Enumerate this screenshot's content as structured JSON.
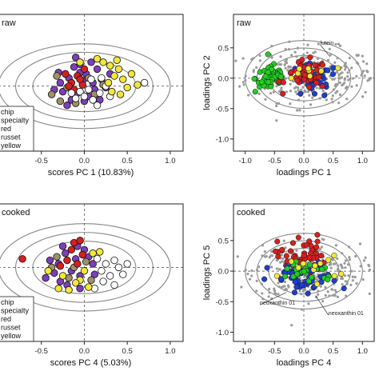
{
  "figure": {
    "colors": {
      "chip": "#7c3fb8",
      "specialty": "#a09068",
      "red": "#d62020",
      "russet": "#ffffff",
      "yellow": "#f2e63a",
      "green": "#22cc22",
      "blue": "#1f3fd0",
      "gray": "#9a9a9a",
      "ellipse": "#888888"
    }
  },
  "chart_data": [
    {
      "type": "scatter",
      "panel": "scores-raw",
      "title": "",
      "xlabel": "scores PC 1 (10.83%)",
      "ylabel": "",
      "xlim": [
        -1.0,
        1.15
      ],
      "ylim": [
        -0.95,
        1.05
      ],
      "xticks": [
        "-0.5",
        "0.0",
        "0.5",
        "1.0"
      ],
      "ellipse_radii": [
        0.6,
        0.8,
        1.0
      ],
      "legend": [
        "chip",
        "specialty",
        "red",
        "russet",
        "yellow"
      ],
      "legend_position": "bottom-left",
      "series": [
        {
          "name": "chip",
          "color_key": "chip",
          "points": [
            [
              -0.28,
              0.05
            ],
            [
              -0.12,
              0.28
            ],
            [
              -0.05,
              0.32
            ],
            [
              0.02,
              0.18
            ],
            [
              -0.18,
              0.12
            ],
            [
              0.1,
              0.05
            ],
            [
              0.15,
              0.25
            ],
            [
              -0.25,
              -0.08
            ],
            [
              -0.08,
              -0.1
            ],
            [
              0.05,
              -0.15
            ],
            [
              -0.15,
              -0.2
            ],
            [
              0.2,
              0.1
            ],
            [
              -0.02,
              0.08
            ],
            [
              0.12,
              -0.05
            ],
            [
              -0.3,
              0.2
            ],
            [
              0.25,
              -0.02
            ],
            [
              -0.1,
              0.42
            ],
            [
              0.08,
              0.35
            ],
            [
              -0.2,
              -0.28
            ],
            [
              0.18,
              -0.2
            ],
            [
              -0.35,
              -0.05
            ],
            [
              0.0,
              -0.22
            ],
            [
              0.3,
              0.18
            ],
            [
              -0.05,
              0.2
            ]
          ]
        },
        {
          "name": "specialty",
          "color_key": "specialty",
          "points": [
            [
              -0.32,
              0.15
            ],
            [
              -0.2,
              -0.02
            ],
            [
              0.05,
              0.12
            ],
            [
              -0.38,
              -0.12
            ],
            [
              0.12,
              -0.12
            ],
            [
              -0.1,
              -0.25
            ],
            [
              0.22,
              0.02
            ],
            [
              -0.28,
              -0.22
            ]
          ]
        },
        {
          "name": "red",
          "color_key": "red",
          "points": [
            [
              -0.15,
              0.05
            ],
            [
              -0.08,
              0.15
            ],
            [
              -0.02,
              0.02
            ],
            [
              -0.22,
              0.18
            ],
            [
              0.0,
              0.25
            ],
            [
              -0.12,
              -0.05
            ],
            [
              -0.05,
              0.1
            ],
            [
              -0.18,
              0.0
            ]
          ]
        },
        {
          "name": "russet",
          "color_key": "russet",
          "points": [
            [
              0.05,
              -0.05
            ],
            [
              -0.05,
              -0.08
            ],
            [
              0.1,
              -0.2
            ],
            [
              0.18,
              -0.1
            ],
            [
              0.0,
              -0.15
            ],
            [
              -0.1,
              -0.18
            ],
            [
              0.25,
              0.0
            ],
            [
              0.15,
              -0.28
            ],
            [
              0.2,
              0.12
            ],
            [
              -0.15,
              -0.1
            ],
            [
              0.08,
              0.1
            ],
            [
              0.3,
              -0.15
            ],
            [
              0.7,
              0.05
            ]
          ]
        },
        {
          "name": "yellow",
          "color_key": "yellow",
          "points": [
            [
              0.3,
              0.3
            ],
            [
              0.35,
              0.15
            ],
            [
              0.4,
              0.25
            ],
            [
              0.28,
              0.05
            ],
            [
              0.45,
              0.1
            ],
            [
              0.5,
              -0.02
            ],
            [
              0.32,
              -0.08
            ],
            [
              0.22,
              0.35
            ],
            [
              0.42,
              -0.12
            ],
            [
              0.55,
              0.18
            ],
            [
              0.38,
              0.38
            ],
            [
              0.62,
              0.02
            ],
            [
              -0.05,
              0.35
            ],
            [
              0.15,
              0.4
            ]
          ]
        }
      ]
    },
    {
      "type": "scatter",
      "panel": "loadings-raw",
      "title": "raw",
      "xlabel": "loadings PC 1",
      "ylabel": "loadings PC 2",
      "xlim": [
        -1.2,
        1.2
      ],
      "ylim": [
        -1.2,
        1.05
      ],
      "xticks": [
        "-1.0",
        "-0.5",
        "0.0",
        "0.5",
        "1.0"
      ],
      "yticks": [
        "-1.0",
        "-0.5",
        "0.0",
        "0.5"
      ],
      "ellipse_radii": [
        0.6,
        0.8,
        1.0
      ],
      "annotations": [
        "lutein"
      ]
    },
    {
      "type": "scatter",
      "panel": "scores-cooked",
      "title": "",
      "xlabel": "scores PC 4 (5.03%)",
      "ylabel": "",
      "xlim": [
        -1.0,
        1.15
      ],
      "ylim": [
        -1.05,
        0.9
      ],
      "xticks": [
        "-0.5",
        "0.0",
        "0.5",
        "1.0"
      ],
      "ellipse_radii": [
        0.6,
        0.8,
        1.0
      ],
      "legend": [
        "chip",
        "specialty",
        "red",
        "russet",
        "yellow"
      ],
      "legend_position": "bottom-left",
      "series": [
        {
          "name": "chip",
          "color_key": "chip",
          "points": [
            [
              -0.3,
              0.05
            ],
            [
              -0.22,
              0.2
            ],
            [
              -0.1,
              0.12
            ],
            [
              0.05,
              0.15
            ],
            [
              -0.35,
              -0.08
            ],
            [
              -0.15,
              -0.05
            ],
            [
              -0.05,
              -0.12
            ],
            [
              0.1,
              0.05
            ],
            [
              -0.28,
              -0.2
            ],
            [
              0.0,
              0.25
            ],
            [
              -0.4,
              0.1
            ],
            [
              -0.2,
              -0.25
            ],
            [
              0.12,
              -0.1
            ],
            [
              -0.08,
              0.3
            ],
            [
              -0.45,
              -0.15
            ],
            [
              -0.25,
              0.3
            ],
            [
              -0.05,
              -0.3
            ]
          ]
        },
        {
          "name": "specialty",
          "color_key": "specialty",
          "points": [
            [
              -0.12,
              0.0
            ],
            [
              -0.32,
              0.15
            ],
            [
              -0.18,
              -0.15
            ],
            [
              0.02,
              0.08
            ],
            [
              -0.38,
              0.0
            ],
            [
              0.08,
              -0.18
            ]
          ]
        },
        {
          "name": "red",
          "color_key": "red",
          "points": [
            [
              -0.72,
              0.12
            ],
            [
              -0.12,
              0.35
            ],
            [
              -0.2,
              0.1
            ],
            [
              -0.02,
              0.18
            ],
            [
              -0.28,
              0.02
            ],
            [
              -0.08,
              0.05
            ],
            [
              -0.15,
              0.25
            ],
            [
              -0.05,
              0.38
            ]
          ]
        },
        {
          "name": "russet",
          "color_key": "russet",
          "points": [
            [
              0.15,
              0.12
            ],
            [
              0.25,
              0.05
            ],
            [
              0.2,
              -0.05
            ],
            [
              0.35,
              0.1
            ],
            [
              0.3,
              -0.12
            ],
            [
              0.4,
              0.0
            ],
            [
              0.45,
              -0.1
            ],
            [
              0.22,
              -0.2
            ],
            [
              0.5,
              0.05
            ],
            [
              0.35,
              -0.25
            ],
            [
              0.12,
              -0.3
            ]
          ]
        },
        {
          "name": "yellow",
          "color_key": "yellow",
          "points": [
            [
              -0.18,
              -0.32
            ],
            [
              -0.05,
              -0.18
            ],
            [
              0.05,
              -0.28
            ],
            [
              -0.3,
              -0.3
            ],
            [
              -0.1,
              -0.22
            ],
            [
              0.1,
              0.2
            ],
            [
              0.18,
              0.22
            ],
            [
              -0.42,
              -0.05
            ],
            [
              -0.25,
              -0.12
            ],
            [
              0.0,
              -0.05
            ]
          ]
        }
      ]
    },
    {
      "type": "scatter",
      "panel": "loadings-cooked",
      "title": "cooked",
      "xlabel": "loadings PC 4",
      "ylabel": "loadings PC 5",
      "xlim": [
        -1.2,
        1.2
      ],
      "ylim": [
        -1.15,
        1.1
      ],
      "xticks": [
        "-1.0",
        "-0.5",
        "0.0",
        "0.5",
        "1.0"
      ],
      "yticks": [
        "-1.0",
        "-0.5",
        "0.0",
        "0.5"
      ],
      "ellipse_radii": [
        0.6,
        0.8,
        1.0
      ],
      "annotations": [
        "neoxanthin 01",
        "neoxanthin 01"
      ]
    }
  ],
  "panel_text": {
    "scores_raw_title": "raw",
    "scores_cooked_title": "cooked"
  }
}
